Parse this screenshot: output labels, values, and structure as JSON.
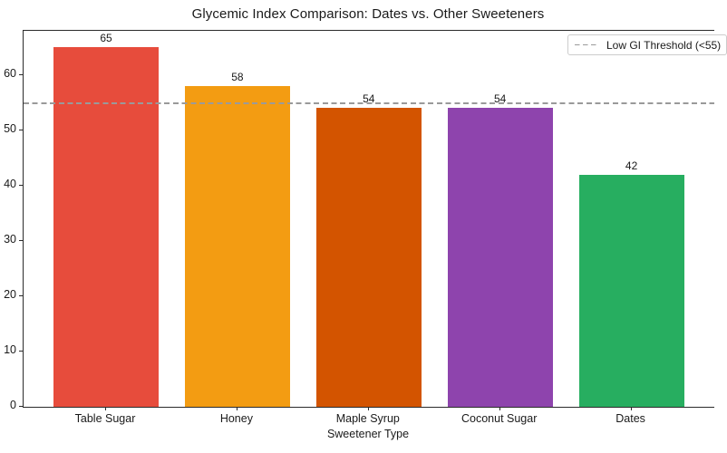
{
  "chart_data": {
    "type": "bar",
    "title": "Glycemic Index Comparison: Dates vs. Other Sweeteners",
    "xlabel": "Sweetener Type",
    "ylabel": "",
    "categories": [
      "Table Sugar",
      "Honey",
      "Maple Syrup",
      "Coconut Sugar",
      "Dates"
    ],
    "values": [
      65,
      58,
      54,
      54,
      42
    ],
    "value_labels": [
      "65",
      "58",
      "54",
      "54",
      "42"
    ],
    "bar_colors": [
      "#e74c3c",
      "#f39c12",
      "#d35400",
      "#8e44ad",
      "#27ae60"
    ],
    "yticks": [
      0,
      10,
      20,
      30,
      40,
      50,
      60
    ],
    "ylim": [
      0,
      68
    ],
    "grid": false,
    "legend": {
      "position": "upper right",
      "entries": [
        {
          "label": "Low GI Threshold (<55)",
          "line_style": "dashed",
          "color": "#9a9a9a"
        }
      ]
    },
    "threshold": {
      "value": 55,
      "label": "Low GI Threshold (<55)",
      "color": "#9a9a9a",
      "style": "dashed"
    }
  }
}
